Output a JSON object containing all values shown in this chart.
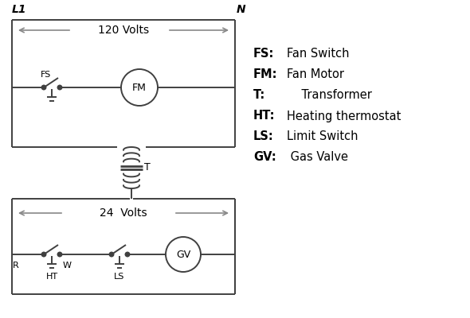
{
  "background_color": "#ffffff",
  "line_color": "#404040",
  "arrow_color": "#888888",
  "text_color": "#000000",
  "legend_lines": [
    [
      "FS:",
      "Fan Switch"
    ],
    [
      "FM:",
      "Fan Motor"
    ],
    [
      "T:",
      "    Transformer"
    ],
    [
      "HT:",
      "Heating thermostat"
    ],
    [
      "LS:",
      "Limit Switch"
    ],
    [
      "GV:",
      " Gas Valve"
    ]
  ],
  "L1_label": "L1",
  "N_label": "N",
  "volts120_label": "120 Volts",
  "volts24_label": "24  Volts",
  "T_label": "T",
  "R_label": "R",
  "W_label": "W",
  "HT_label": "HT",
  "LS_label": "LS",
  "FS_label": "FS",
  "FM_label": "FM",
  "GV_label": "GV"
}
